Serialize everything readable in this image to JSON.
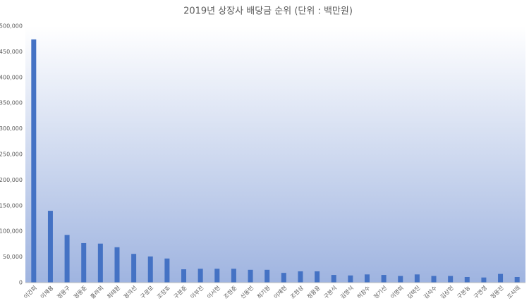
{
  "chart_data": {
    "type": "bar",
    "title": "2019년 상장사 배당금 순위 (단위 : 백만원)",
    "categories": [
      "이건희",
      "이재용",
      "정몽구",
      "정몽준",
      "홍라희",
      "최태원",
      "정의선",
      "구광모",
      "조정호",
      "구본준",
      "이부진",
      "이서현",
      "조현준",
      "신동빈",
      "최기원",
      "이재현",
      "조현상",
      "정몽윤",
      "구본식",
      "김영식",
      "허창수",
      "정기선",
      "이명희",
      "김택진",
      "김석수",
      "김상헌",
      "구본능",
      "구연경",
      "정몽진",
      "조석래"
    ],
    "values": [
      474000,
      140000,
      93000,
      77000,
      76000,
      69000,
      56000,
      51000,
      47000,
      26000,
      27000,
      27000,
      27000,
      25000,
      25000,
      19000,
      22000,
      22000,
      15000,
      14000,
      16000,
      15000,
      13000,
      16000,
      13000,
      13000,
      11000,
      10000,
      17000,
      11000
    ],
    "color": "#4472c4",
    "ylim": [
      0,
      500000
    ],
    "yticks": [
      0,
      {
        "value": 50000,
        "label": "50,000"
      },
      {
        "value": 100000,
        "label": "100,000"
      },
      {
        "value": 150000,
        "label": "150,000"
      },
      {
        "value": 200000,
        "label": "200,000"
      },
      {
        "value": 250000,
        "label": "250,000"
      },
      {
        "value": 300000,
        "label": "300,000"
      },
      {
        "value": 350000,
        "label": "350,000"
      },
      {
        "value": 400000,
        "label": "400,000"
      },
      {
        "value": 450000,
        "label": "450,000"
      },
      {
        "value": 500000,
        "label": "500,000"
      }
    ],
    "grid": false
  }
}
